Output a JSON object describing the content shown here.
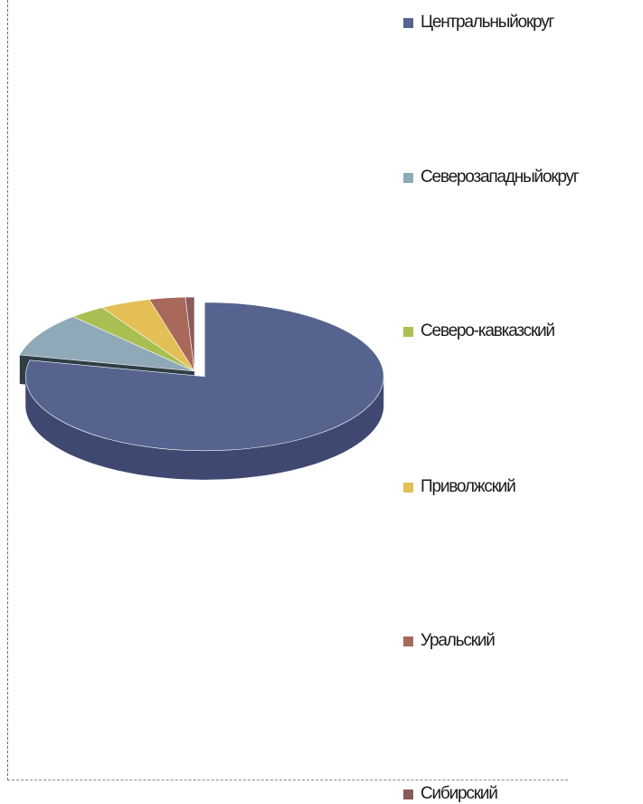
{
  "chart_data": {
    "type": "pie",
    "title": "",
    "legend_position": "right",
    "slices": [
      {
        "label": "Центральныйокруг",
        "value": 77.5,
        "color": "#56638f",
        "side_color": "#3e4870"
      },
      {
        "label": "Северозападныйокруг",
        "value": 9.5,
        "color": "#8fa9b8",
        "side_color": "#2f3d45"
      },
      {
        "label": "Северо-кавказский",
        "value": 3.2,
        "color": "#a9bf52",
        "side_color": "#6f7f30"
      },
      {
        "label": "Приволжский",
        "value": 4.5,
        "color": "#e3bf55",
        "side_color": "#a6852c"
      },
      {
        "label": "Уральский",
        "value": 3.2,
        "color": "#a8685a",
        "side_color": "#6e4036"
      },
      {
        "label": "Сибирский",
        "value": 0.8,
        "color": "#8a5a5a",
        "side_color": "#5a3838"
      }
    ]
  }
}
